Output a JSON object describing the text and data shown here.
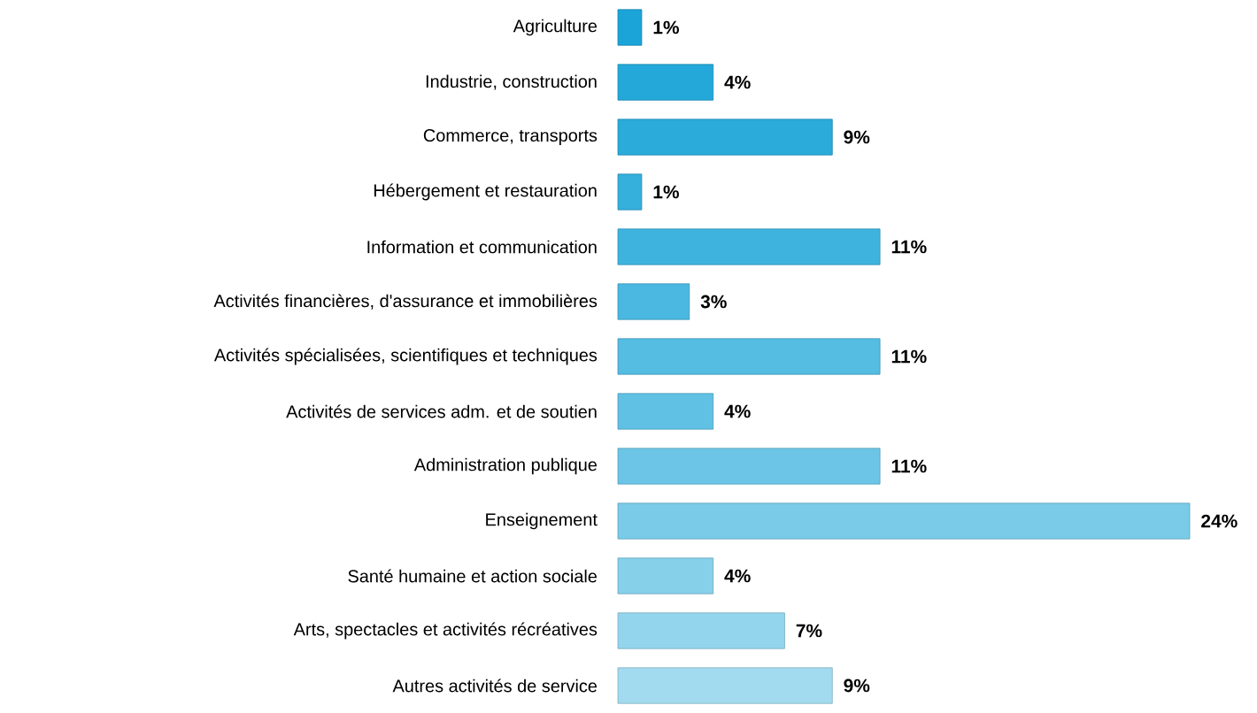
{
  "chart_data": {
    "type": "bar",
    "orientation": "horizontal",
    "categories": [
      "Agriculture",
      "Industrie, construction",
      "Commerce, transports",
      "Hébergement et restauration",
      "Information et communication",
      "Activités financières, d'assurance et immobilières",
      "Activités spécialisées, scientifiques et techniques",
      "Activités de services adm. et de soutien",
      "Administration publique",
      "Enseignement",
      "Santé humaine et action sociale",
      "Arts, spectacles et activités récréatives",
      "Autres activités de service"
    ],
    "values": [
      1,
      4,
      9,
      1,
      11,
      3,
      11,
      4,
      11,
      24,
      4,
      7,
      9
    ],
    "value_labels": [
      "1%",
      "4%",
      "9%",
      "1%",
      "11%",
      "3%",
      "11%",
      "4%",
      "11%",
      "24%",
      "4%",
      "7%",
      "9%"
    ],
    "colors": [
      "#1ba4d7",
      "#23a8d9",
      "#2aabda",
      "#35afdc",
      "#3eb3de",
      "#4ab8e0",
      "#55bce2",
      "#60c1e4",
      "#6cc5e6",
      "#79cbe8",
      "#86d0ea",
      "#93d5ec",
      "#a2dbef"
    ]
  }
}
